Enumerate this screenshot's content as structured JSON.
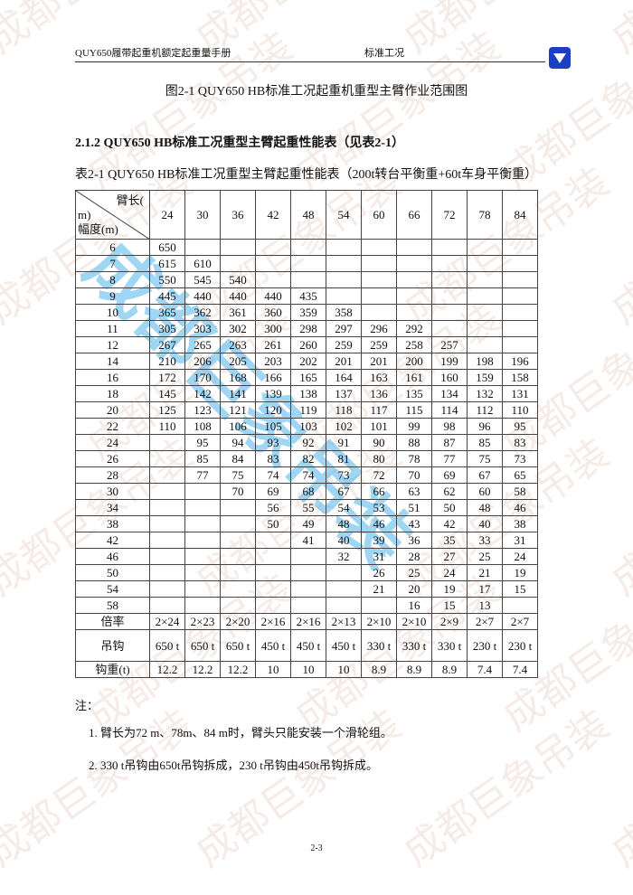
{
  "header": {
    "manual_title": "QUY650履带起重机额定起重量手册",
    "section": "标准工况",
    "logo": "XCMG"
  },
  "figure_caption": "图2-1  QUY650 HB标准工况起重机重型主臂作业范围图",
  "section_heading": "2.1.2 QUY650 HB标准工况重型主臂起重性能表（见表2-1）",
  "table": {
    "caption": "表2-1 QUY650 HB标准工况重型主臂起重性能表（200t转台平衡重+60t车身平衡重）",
    "corner_top": "臂长(",
    "corner_mid": "m)",
    "corner_bottom": "幅度(m)",
    "boom_lengths": [
      "24",
      "30",
      "36",
      "42",
      "48",
      "54",
      "60",
      "66",
      "72",
      "78",
      "84"
    ],
    "rows": [
      {
        "radius": "6",
        "values": [
          "650",
          "",
          "",
          "",
          "",
          "",
          "",
          "",
          "",
          "",
          ""
        ]
      },
      {
        "radius": "7",
        "values": [
          "615",
          "610",
          "",
          "",
          "",
          "",
          "",
          "",
          "",
          "",
          ""
        ]
      },
      {
        "radius": "8",
        "values": [
          "550",
          "545",
          "540",
          "",
          "",
          "",
          "",
          "",
          "",
          "",
          ""
        ]
      },
      {
        "radius": "9",
        "values": [
          "445",
          "440",
          "440",
          "440",
          "435",
          "",
          "",
          "",
          "",
          "",
          ""
        ]
      },
      {
        "radius": "10",
        "values": [
          "365",
          "362",
          "361",
          "360",
          "359",
          "358",
          "",
          "",
          "",
          "",
          ""
        ]
      },
      {
        "radius": "11",
        "values": [
          "305",
          "303",
          "302",
          "300",
          "298",
          "297",
          "296",
          "292",
          "",
          "",
          ""
        ]
      },
      {
        "radius": "12",
        "values": [
          "267",
          "265",
          "263",
          "261",
          "260",
          "259",
          "259",
          "258",
          "257",
          "",
          ""
        ]
      },
      {
        "radius": "14",
        "values": [
          "210",
          "206",
          "205",
          "203",
          "202",
          "201",
          "201",
          "200",
          "199",
          "198",
          "196"
        ]
      },
      {
        "radius": "16",
        "values": [
          "172",
          "170",
          "168",
          "166",
          "165",
          "164",
          "163",
          "161",
          "160",
          "159",
          "158"
        ]
      },
      {
        "radius": "18",
        "values": [
          "145",
          "142",
          "141",
          "139",
          "138",
          "137",
          "136",
          "135",
          "134",
          "132",
          "131"
        ]
      },
      {
        "radius": "20",
        "values": [
          "125",
          "123",
          "121",
          "120",
          "119",
          "118",
          "117",
          "115",
          "114",
          "112",
          "110"
        ]
      },
      {
        "radius": "22",
        "values": [
          "110",
          "108",
          "106",
          "105",
          "103",
          "102",
          "101",
          "99",
          "98",
          "96",
          "95"
        ]
      },
      {
        "radius": "24",
        "values": [
          "",
          "95",
          "94",
          "93",
          "92",
          "91",
          "90",
          "88",
          "87",
          "85",
          "83"
        ]
      },
      {
        "radius": "26",
        "values": [
          "",
          "85",
          "84",
          "83",
          "82",
          "81",
          "80",
          "78",
          "77",
          "75",
          "73"
        ]
      },
      {
        "radius": "28",
        "values": [
          "",
          "77",
          "75",
          "74",
          "74",
          "73",
          "72",
          "70",
          "69",
          "67",
          "65"
        ]
      },
      {
        "radius": "30",
        "values": [
          "",
          "",
          "70",
          "69",
          "68",
          "67",
          "66",
          "63",
          "62",
          "60",
          "58"
        ]
      },
      {
        "radius": "34",
        "values": [
          "",
          "",
          "",
          "56",
          "55",
          "54",
          "53",
          "51",
          "50",
          "48",
          "46"
        ]
      },
      {
        "radius": "38",
        "values": [
          "",
          "",
          "",
          "50",
          "49",
          "48",
          "46",
          "43",
          "42",
          "40",
          "38"
        ]
      },
      {
        "radius": "42",
        "values": [
          "",
          "",
          "",
          "",
          "41",
          "40",
          "39",
          "36",
          "35",
          "33",
          "31"
        ]
      },
      {
        "radius": "46",
        "values": [
          "",
          "",
          "",
          "",
          "",
          "32",
          "31",
          "28",
          "27",
          "25",
          "24"
        ]
      },
      {
        "radius": "50",
        "values": [
          "",
          "",
          "",
          "",
          "",
          "",
          "26",
          "25",
          "24",
          "21",
          "19"
        ]
      },
      {
        "radius": "54",
        "values": [
          "",
          "",
          "",
          "",
          "",
          "",
          "21",
          "20",
          "19",
          "17",
          "15"
        ]
      },
      {
        "radius": "58",
        "values": [
          "",
          "",
          "",
          "",
          "",
          "",
          "",
          "16",
          "15",
          "13",
          ""
        ]
      }
    ],
    "reeving_label": "倍率",
    "reeving": [
      "2×24",
      "2×23",
      "2×20",
      "2×16",
      "2×16",
      "2×13",
      "2×10",
      "2×10",
      "2×9",
      "2×7",
      "2×7"
    ],
    "hook_label": "吊钩",
    "hooks": [
      "650 t",
      "650 t",
      "650 t",
      "450 t",
      "450 t",
      "450 t",
      "330 t",
      "330 t",
      "330 t",
      "230 t",
      "230 t"
    ],
    "hook_weight_label": "钩重(t)",
    "hook_weights": [
      "12.2",
      "12.2",
      "12.2",
      "10",
      "10",
      "10",
      "8.9",
      "8.9",
      "8.9",
      "7.4",
      "7.4"
    ]
  },
  "notes": {
    "title": "注：",
    "items": [
      "1. 臂长为72 m、78m、84 m时，臂头只能安装一个滑轮组。",
      "2. 330 t吊钩由650t吊钩拆成，230 t吊钩由450t吊钩拆成。"
    ]
  },
  "page_number": "2-3",
  "watermark": "成都巨象吊装"
}
